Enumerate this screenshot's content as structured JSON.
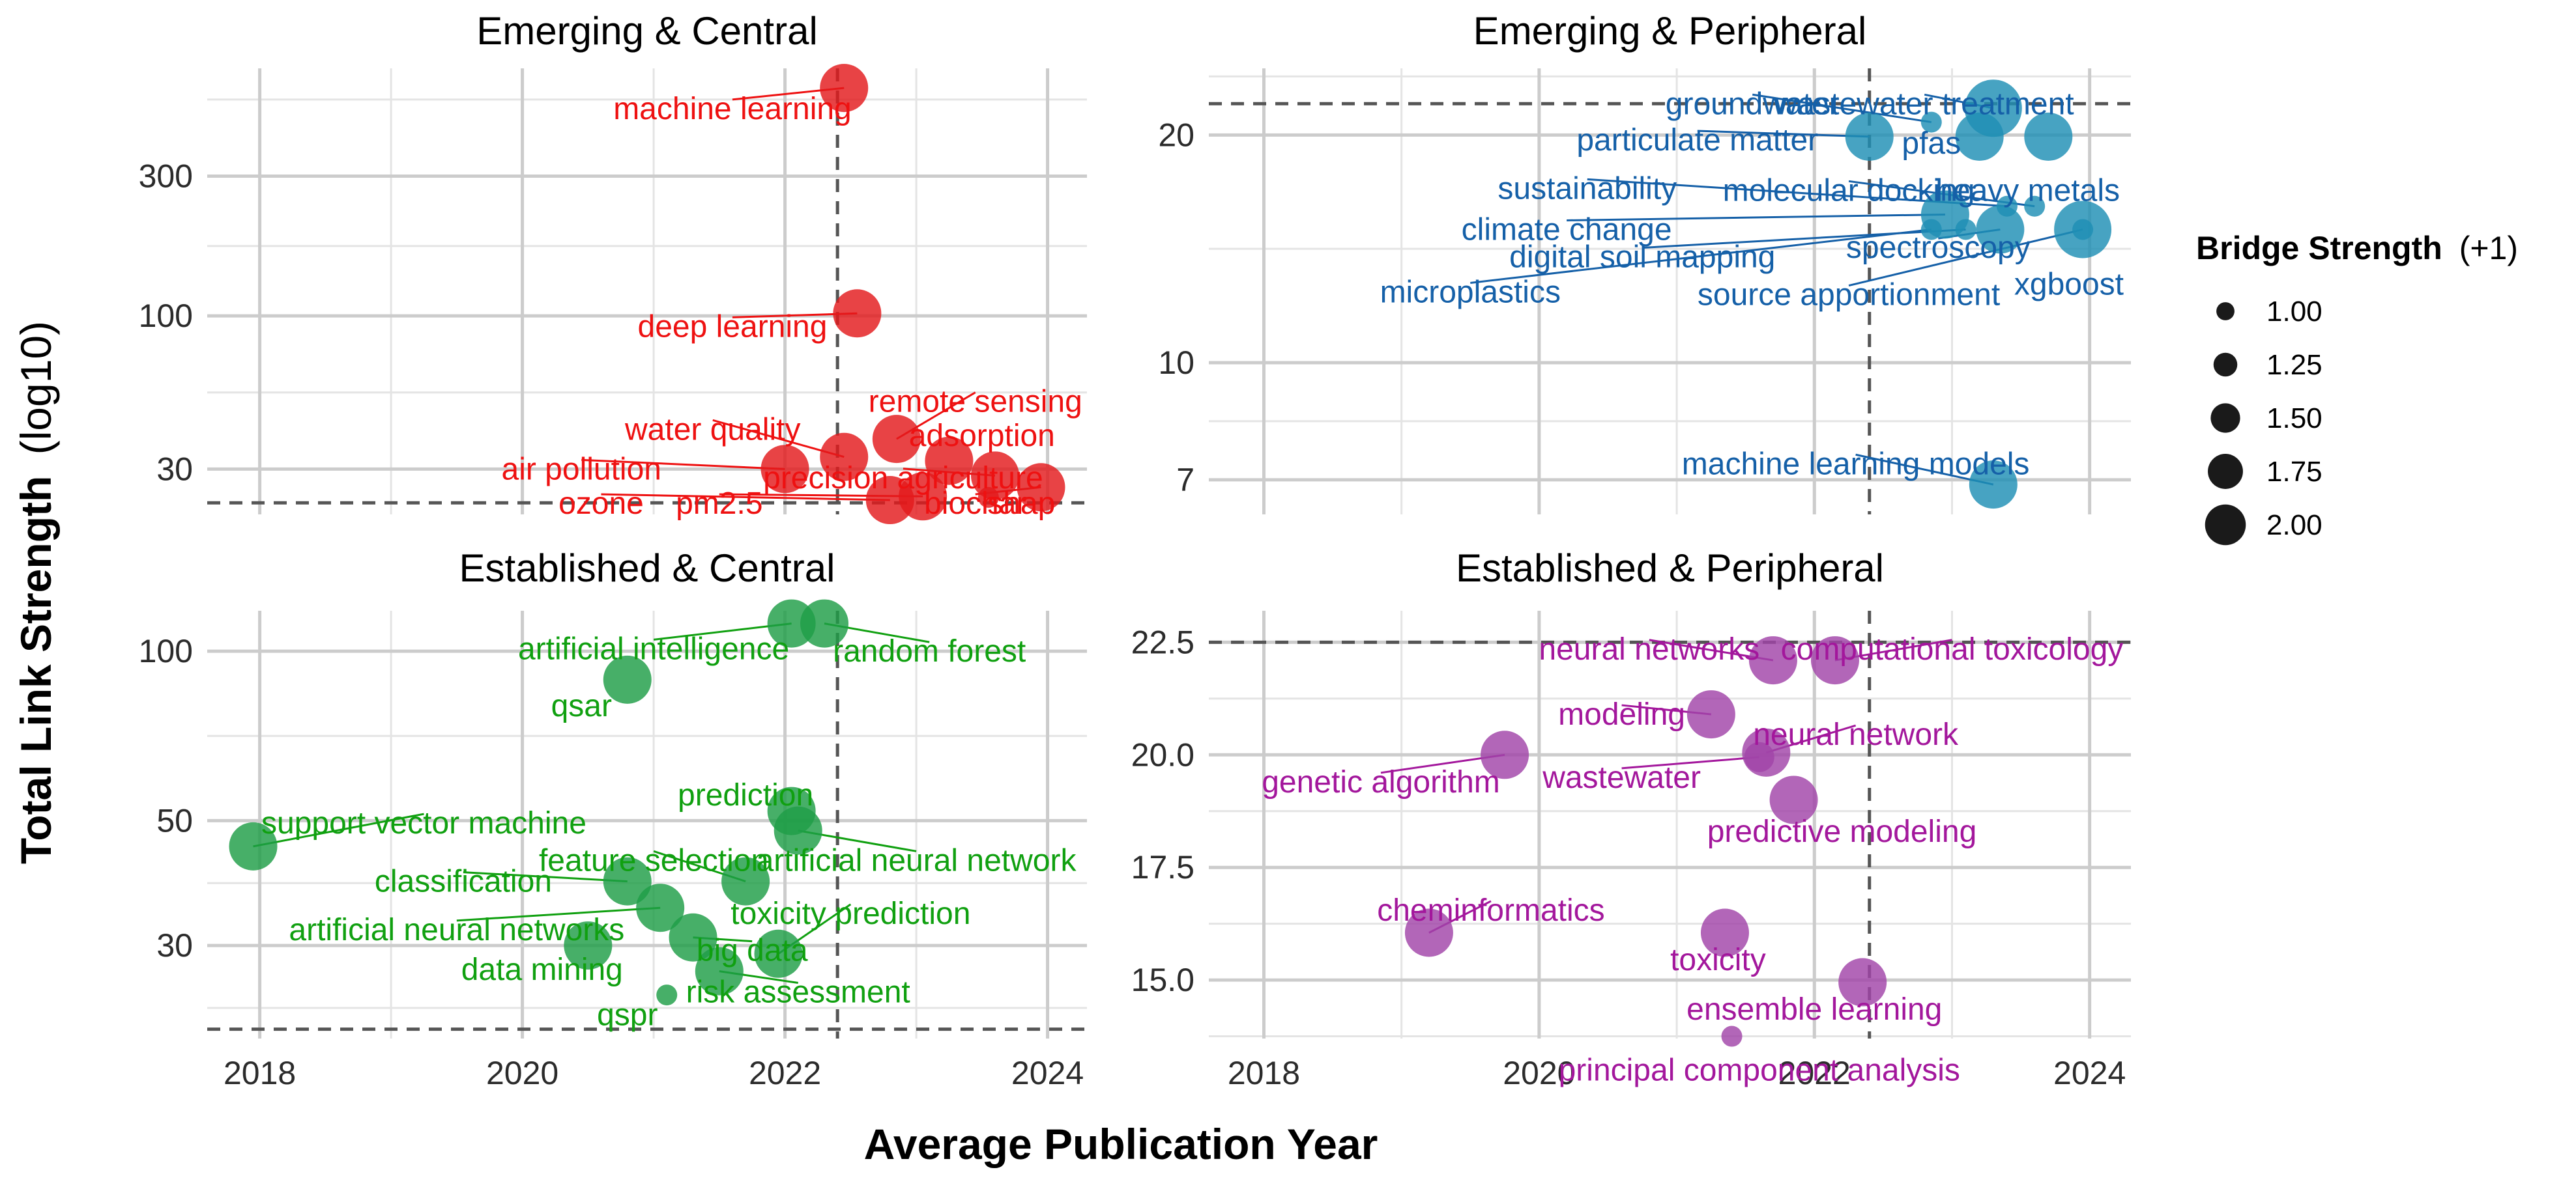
{
  "chart_data": {
    "type": "scatter",
    "x_title": "Average Publication Year",
    "y_title_main": "Total Link Strength",
    "y_title_suffix": "(log10)",
    "x_range": [
      2017.6,
      2024.3
    ],
    "x_ticks": [
      2018,
      2020,
      2022,
      2024
    ],
    "x_tick_labels": [
      "2018",
      "2020",
      "2022",
      "2024"
    ],
    "legend": {
      "title_main": "Bridge Strength",
      "title_suffix": "(+1)",
      "entries": [
        {
          "value": 1.0,
          "label": "1.00"
        },
        {
          "value": 1.25,
          "label": "1.25"
        },
        {
          "value": 1.5,
          "label": "1.50"
        },
        {
          "value": 1.75,
          "label": "1.75"
        },
        {
          "value": 2.0,
          "label": "2.00"
        }
      ]
    },
    "panels": [
      {
        "id": "emerging-central",
        "title": "Emerging & Central",
        "color": "#E31A1C",
        "label_color": "#EE1111",
        "y_scale": "log",
        "y_range": [
          21,
          700
        ],
        "y_ticks": [
          30,
          100,
          300
        ],
        "y_tick_labels": [
          "30",
          "100",
          "300"
        ],
        "vline_x": 2022.4,
        "hline_y": 23,
        "points": [
          {
            "label": "machine learning",
            "x": 2022.45,
            "y": 600,
            "size": 1.75,
            "label_x": 2021.6,
            "label_y": 510
          },
          {
            "label": "deep learning",
            "x": 2022.55,
            "y": 102,
            "size": 1.75,
            "label_x": 2021.6,
            "label_y": 92
          },
          {
            "label": "remote sensing",
            "x": 2022.85,
            "y": 38,
            "size": 1.75,
            "label_x": 2023.45,
            "label_y": 51
          },
          {
            "label": "water quality",
            "x": 2022.45,
            "y": 33,
            "size": 1.75,
            "label_x": 2021.45,
            "label_y": 41
          },
          {
            "label": "adsorption",
            "x": 2023.25,
            "y": 32,
            "size": 1.75,
            "label_x": 2023.5,
            "label_y": 39
          },
          {
            "label": "air pollution",
            "x": 2022.0,
            "y": 30,
            "size": 1.75,
            "label_x": 2020.45,
            "label_y": 30
          },
          {
            "label": "precision agriculture",
            "x": 2023.6,
            "y": 28.5,
            "size": 1.75,
            "label_x": 2022.9,
            "label_y": 28
          },
          {
            "label": "biochar",
            "x": 2023.95,
            "y": 26,
            "size": 1.75,
            "label_x": 2023.45,
            "label_y": 22.9
          },
          {
            "label": "shap",
            "x": 2023.55,
            "y": 24,
            "size": 1.0,
            "label_x": 2023.8,
            "label_y": 22.9
          },
          {
            "label": "ozone",
            "x": 2022.8,
            "y": 23.5,
            "size": 1.75,
            "label_x": 2020.6,
            "label_y": 22.9
          },
          {
            "label": "pm2.5",
            "x": 2023.05,
            "y": 24.2,
            "size": 1.75,
            "label_x": 2021.5,
            "label_y": 22.9
          }
        ]
      },
      {
        "id": "emerging-peripheral",
        "title": "Emerging & Peripheral",
        "color": "#1F8FB4",
        "label_color": "#1560A8",
        "y_scale": "log",
        "y_range": [
          6.3,
          24.5
        ],
        "y_ticks": [
          7,
          10,
          20
        ],
        "y_tick_labels": [
          "7",
          "10",
          "20"
        ],
        "vline_x": 2022.4,
        "hline_y": 22,
        "points": [
          {
            "label": "groundwater",
            "x": 2022.85,
            "y": 20.8,
            "size": 1.0,
            "label_x": 2021.55,
            "label_y": 22.0
          },
          {
            "label": "wastewater treatment",
            "x": 2023.3,
            "y": 21.7,
            "size": 2.0,
            "label_x": 2022.8,
            "label_y": 22.0
          },
          {
            "label": "particulate matter",
            "x": 2022.4,
            "y": 19.9,
            "size": 1.75,
            "label_x": 2021.15,
            "label_y": 19.7
          },
          {
            "label": "pfas",
            "x": 2023.2,
            "y": 19.9,
            "size": 1.75,
            "label_x": 2022.85,
            "label_y": 19.5
          },
          {
            "label": "heavy metals",
            "x": 2023.7,
            "y": 19.9,
            "size": 1.75,
            "label_x": 2023.55,
            "label_y": 16.9
          },
          {
            "label": "sustainability",
            "x": 2023.4,
            "y": 16.1,
            "size": 1.0,
            "label_x": 2020.35,
            "label_y": 17.0
          },
          {
            "label": "molecular docking",
            "x": 2023.6,
            "y": 16.1,
            "size": 1.0,
            "label_x": 2022.25,
            "label_y": 16.9
          },
          {
            "label": "climate change",
            "x": 2022.95,
            "y": 15.7,
            "size": 1.75,
            "label_x": 2020.2,
            "label_y": 15.0
          },
          {
            "label": "spectroscopy",
            "x": 2023.35,
            "y": 15.0,
            "size": 1.75,
            "label_x": 2022.9,
            "label_y": 14.2
          },
          {
            "label": "digital soil mapping",
            "x": 2023.1,
            "y": 15.0,
            "size": 1.0,
            "label_x": 2020.75,
            "label_y": 13.8
          },
          {
            "label": "xgboost",
            "x": 2023.95,
            "y": 15.0,
            "size": 2.0,
            "label_x": 2023.85,
            "label_y": 12.7
          },
          {
            "label": "microplastics",
            "x": 2022.85,
            "y": 15.0,
            "size": 1.0,
            "label_x": 2019.5,
            "label_y": 12.4
          },
          {
            "label": "source apportionment",
            "x": 2023.95,
            "y": 15.0,
            "size": 1.0,
            "label_x": 2022.25,
            "label_y": 12.3
          },
          {
            "label": "machine learning models",
            "x": 2023.3,
            "y": 6.9,
            "size": 1.75,
            "label_x": 2022.3,
            "label_y": 7.35
          }
        ]
      },
      {
        "id": "established-central",
        "title": "Established & Central",
        "color": "#1E9E47",
        "label_color": "#10A010",
        "y_scale": "log",
        "y_range": [
          20.5,
          118
        ],
        "y_ticks": [
          30,
          50,
          100
        ],
        "y_tick_labels": [
          "30",
          "50",
          "100"
        ],
        "vline_x": 2022.4,
        "hline_y": 21.3,
        "points": [
          {
            "label": "artificial intelligence",
            "x": 2022.05,
            "y": 112,
            "size": 1.75,
            "label_x": 2021.0,
            "label_y": 101
          },
          {
            "label": "random forest",
            "x": 2022.3,
            "y": 112,
            "size": 1.75,
            "label_x": 2023.1,
            "label_y": 100
          },
          {
            "label": "qsar",
            "x": 2020.8,
            "y": 89,
            "size": 1.75,
            "label_x": 2020.45,
            "label_y": 80
          },
          {
            "label": "prediction",
            "x": 2022.05,
            "y": 52,
            "size": 1.75,
            "label_x": 2021.7,
            "label_y": 55.5
          },
          {
            "label": "support vector machine",
            "x": 2017.95,
            "y": 45,
            "size": 1.75,
            "label_x": 2019.25,
            "label_y": 49.5
          },
          {
            "label": "feature selection",
            "x": 2021.7,
            "y": 39,
            "size": 1.75,
            "label_x": 2021.0,
            "label_y": 42.5
          },
          {
            "label": "artificial neural network",
            "x": 2022.1,
            "y": 48,
            "size": 1.75,
            "label_x": 2023.0,
            "label_y": 42.5
          },
          {
            "label": "classification",
            "x": 2020.8,
            "y": 39,
            "size": 1.75,
            "label_x": 2019.55,
            "label_y": 39
          },
          {
            "label": "toxicity prediction",
            "x": 2021.95,
            "y": 29,
            "size": 1.75,
            "label_x": 2022.5,
            "label_y": 34.2
          },
          {
            "label": "artificial neural networks",
            "x": 2021.05,
            "y": 35,
            "size": 1.75,
            "label_x": 2019.5,
            "label_y": 32
          },
          {
            "label": "big data",
            "x": 2021.3,
            "y": 31,
            "size": 1.75,
            "label_x": 2021.75,
            "label_y": 29.4
          },
          {
            "label": "data mining",
            "x": 2020.5,
            "y": 30,
            "size": 1.75,
            "label_x": 2020.15,
            "label_y": 27.2
          },
          {
            "label": "risk assessment",
            "x": 2021.5,
            "y": 27,
            "size": 1.75,
            "label_x": 2022.1,
            "label_y": 24.8
          },
          {
            "label": "qspr",
            "x": 2021.1,
            "y": 24.5,
            "size": 1.0,
            "label_x": 2020.8,
            "label_y": 22.6
          }
        ]
      },
      {
        "id": "established-peripheral",
        "title": "Established & Peripheral",
        "color": "#A144A8",
        "label_color": "#A3179C",
        "y_scale": "linear",
        "y_range": [
          13.7,
          23.2
        ],
        "y_ticks": [
          15.0,
          17.5,
          20.0,
          22.5
        ],
        "y_tick_labels": [
          "15.0",
          "17.5",
          "20.0",
          "22.5"
        ],
        "vline_x": 2022.4,
        "hline_y": 22.5,
        "points": [
          {
            "label": "neural networks",
            "x": 2021.7,
            "y": 22.1,
            "size": 1.75,
            "label_x": 2020.8,
            "label_y": 22.35
          },
          {
            "label": "computational toxicology",
            "x": 2022.15,
            "y": 22.1,
            "size": 1.75,
            "label_x": 2023.0,
            "label_y": 22.35
          },
          {
            "label": "modeling",
            "x": 2021.25,
            "y": 20.9,
            "size": 1.75,
            "label_x": 2020.6,
            "label_y": 20.9
          },
          {
            "label": "neural network",
            "x": 2021.65,
            "y": 20.05,
            "size": 1.75,
            "label_x": 2022.3,
            "label_y": 20.45
          },
          {
            "label": "genetic algorithm",
            "x": 2019.75,
            "y": 20.0,
            "size": 1.75,
            "label_x": 2018.85,
            "label_y": 19.4
          },
          {
            "label": "wastewater",
            "x": 2021.6,
            "y": 19.95,
            "size": 1.25,
            "label_x": 2020.6,
            "label_y": 19.5
          },
          {
            "label": "predictive modeling",
            "x": 2021.85,
            "y": 19.0,
            "size": 1.75,
            "label_x": 2022.2,
            "label_y": 18.3
          },
          {
            "label": "cheminformatics",
            "x": 2019.2,
            "y": 16.05,
            "size": 1.75,
            "label_x": 2019.65,
            "label_y": 16.55
          },
          {
            "label": "toxicity",
            "x": 2021.35,
            "y": 16.05,
            "size": 1.75,
            "label_x": 2021.3,
            "label_y": 15.45
          },
          {
            "label": "ensemble learning",
            "x": 2022.35,
            "y": 14.95,
            "size": 1.75,
            "label_x": 2022.0,
            "label_y": 14.35
          },
          {
            "label": "principal component analysis",
            "x": 2021.4,
            "y": 13.75,
            "size": 1.0,
            "label_x": 2021.6,
            "label_y": 13.0
          }
        ]
      }
    ]
  }
}
